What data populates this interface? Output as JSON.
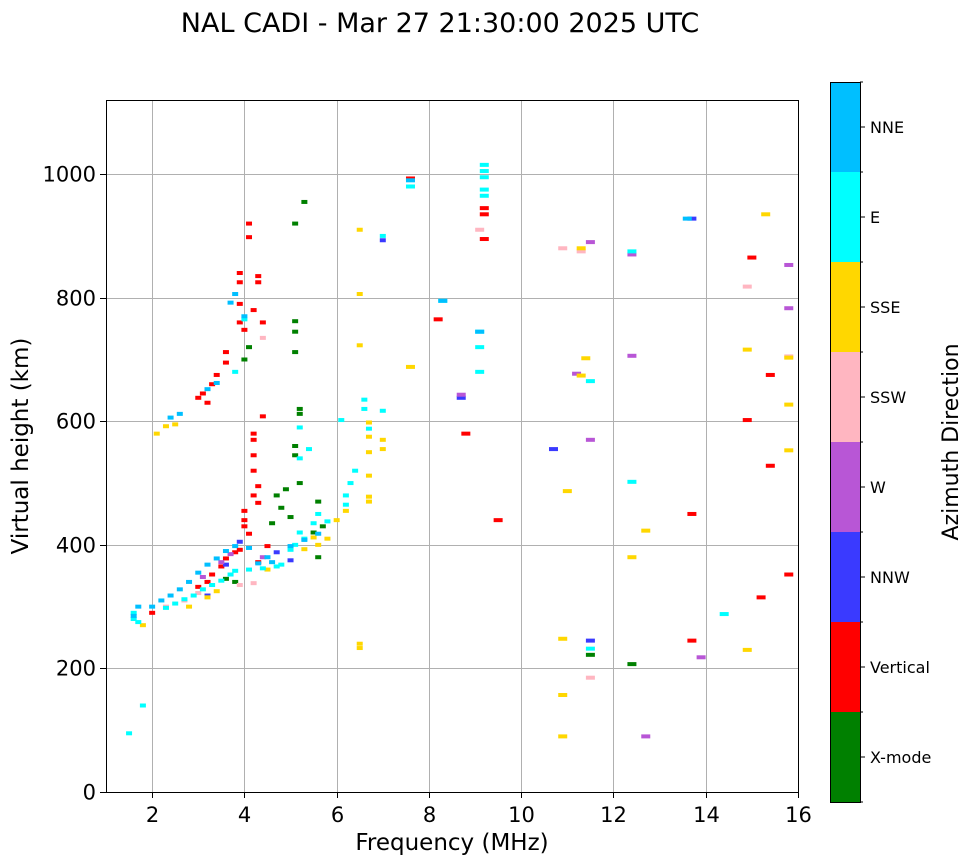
{
  "chart_data": {
    "type": "scatter",
    "title": "NAL CADI - Mar 27 21:30:00 2025 UTC",
    "xlabel": "Frequency (MHz)",
    "ylabel": "Virtual height (km)",
    "xlim": [
      1,
      16
    ],
    "ylim": [
      0,
      1120
    ],
    "xticks": [
      2,
      4,
      6,
      8,
      10,
      12,
      14,
      16
    ],
    "yticks": [
      0,
      200,
      400,
      600,
      800,
      1000
    ],
    "grid": true,
    "colorbar": {
      "label": "Azimuth Direction",
      "categories": [
        {
          "name": "X-mode",
          "color": "#008000"
        },
        {
          "name": "Vertical",
          "color": "#ff0000"
        },
        {
          "name": "NNW",
          "color": "#3a3aff"
        },
        {
          "name": "W",
          "color": "#b856d6"
        },
        {
          "name": "SSW",
          "color": "#ffb6c1"
        },
        {
          "name": "SSE",
          "color": "#ffd700"
        },
        {
          "name": "E",
          "color": "#00ffff"
        },
        {
          "name": "NNE",
          "color": "#00bfff"
        }
      ]
    },
    "series": [
      {
        "name": "X-mode",
        "points": [
          [
            5.1,
            762
          ],
          [
            5.1,
            745
          ],
          [
            5.1,
            712
          ],
          [
            5.2,
            620
          ],
          [
            5.2,
            612
          ],
          [
            5.1,
            560
          ],
          [
            5.1,
            545
          ],
          [
            5.0,
            445
          ],
          [
            4.9,
            490
          ],
          [
            5.2,
            500
          ],
          [
            5.3,
            955
          ],
          [
            5.1,
            920
          ],
          [
            4.0,
            700
          ],
          [
            4.1,
            720
          ],
          [
            5.6,
            470
          ],
          [
            5.5,
            420
          ],
          [
            5.7,
            430
          ],
          [
            5.6,
            380
          ],
          [
            4.8,
            460
          ],
          [
            3.6,
            345
          ],
          [
            3.8,
            340
          ],
          [
            11.5,
            222
          ],
          [
            12.4,
            207
          ],
          [
            4.6,
            435
          ],
          [
            4.7,
            480
          ]
        ]
      },
      {
        "name": "Vertical",
        "points": [
          [
            4.1,
            920
          ],
          [
            4.1,
            898
          ],
          [
            3.9,
            840
          ],
          [
            3.9,
            825
          ],
          [
            4.3,
            835
          ],
          [
            4.3,
            825
          ],
          [
            3.9,
            790
          ],
          [
            3.9,
            760
          ],
          [
            4.0,
            748
          ],
          [
            3.6,
            712
          ],
          [
            3.6,
            695
          ],
          [
            3.4,
            675
          ],
          [
            3.3,
            660
          ],
          [
            3.1,
            645
          ],
          [
            3.0,
            638
          ],
          [
            3.2,
            630
          ],
          [
            4.2,
            580
          ],
          [
            4.2,
            570
          ],
          [
            4.2,
            545
          ],
          [
            4.2,
            520
          ],
          [
            4.3,
            495
          ],
          [
            4.2,
            480
          ],
          [
            4.3,
            468
          ],
          [
            4.0,
            455
          ],
          [
            4.0,
            440
          ],
          [
            4.0,
            430
          ],
          [
            4.1,
            418
          ],
          [
            4.5,
            398
          ],
          [
            3.9,
            392
          ],
          [
            3.8,
            388
          ],
          [
            3.6,
            378
          ],
          [
            4.3,
            372
          ],
          [
            3.5,
            365
          ],
          [
            3.3,
            352
          ],
          [
            3.2,
            340
          ],
          [
            3.0,
            332
          ],
          [
            7.6,
            993
          ],
          [
            9.2,
            945
          ],
          [
            9.2,
            935
          ],
          [
            9.2,
            895
          ],
          [
            8.2,
            765
          ],
          [
            8.8,
            580
          ],
          [
            9.5,
            440
          ],
          [
            15.0,
            865
          ],
          [
            15.4,
            675
          ],
          [
            14.9,
            602
          ],
          [
            15.4,
            528
          ],
          [
            13.7,
            450
          ],
          [
            15.2,
            315
          ],
          [
            13.7,
            245
          ],
          [
            15.8,
            352
          ],
          [
            4.4,
            608
          ],
          [
            2.0,
            290
          ],
          [
            4.2,
            780
          ],
          [
            4.4,
            760
          ]
        ]
      },
      {
        "name": "NNW",
        "points": [
          [
            7.0,
            893
          ],
          [
            8.7,
            638
          ],
          [
            10.7,
            555
          ],
          [
            13.7,
            928
          ],
          [
            11.5,
            245
          ],
          [
            3.6,
            368
          ],
          [
            3.9,
            405
          ],
          [
            3.2,
            318
          ],
          [
            4.7,
            388
          ],
          [
            5.0,
            375
          ]
        ]
      },
      {
        "name": "W",
        "points": [
          [
            11.5,
            890
          ],
          [
            12.4,
            870
          ],
          [
            8.7,
            643
          ],
          [
            12.4,
            706
          ],
          [
            11.5,
            570
          ],
          [
            11.2,
            677
          ],
          [
            13.9,
            218
          ],
          [
            12.7,
            90
          ],
          [
            15.8,
            853
          ],
          [
            15.8,
            783
          ],
          [
            3.7,
            385
          ],
          [
            3.5,
            372
          ],
          [
            4.4,
            380
          ],
          [
            3.1,
            348
          ]
        ]
      },
      {
        "name": "SSW",
        "points": [
          [
            10.9,
            880
          ],
          [
            11.3,
            875
          ],
          [
            9.1,
            910
          ],
          [
            14.9,
            818
          ],
          [
            15.8,
            705
          ],
          [
            11.5,
            185
          ],
          [
            3.9,
            335
          ],
          [
            4.2,
            338
          ],
          [
            2.3,
            300
          ],
          [
            2.7,
            310
          ],
          [
            3.0,
            322
          ],
          [
            4.4,
            735
          ]
        ]
      },
      {
        "name": "SSE",
        "points": [
          [
            6.5,
            910
          ],
          [
            6.5,
            806
          ],
          [
            6.5,
            723
          ],
          [
            7.6,
            688
          ],
          [
            6.7,
            598
          ],
          [
            6.7,
            575
          ],
          [
            6.7,
            550
          ],
          [
            6.7,
            512
          ],
          [
            6.7,
            478
          ],
          [
            6.7,
            470
          ],
          [
            6.2,
            455
          ],
          [
            6.0,
            440
          ],
          [
            5.8,
            410
          ],
          [
            5.6,
            400
          ],
          [
            5.3,
            393
          ],
          [
            11.3,
            880
          ],
          [
            11.4,
            702
          ],
          [
            11.0,
            487
          ],
          [
            12.4,
            380
          ],
          [
            12.7,
            423
          ],
          [
            10.9,
            248
          ],
          [
            10.9,
            157
          ],
          [
            10.9,
            90
          ],
          [
            15.3,
            935
          ],
          [
            14.9,
            716
          ],
          [
            15.8,
            627
          ],
          [
            15.8,
            553
          ],
          [
            14.9,
            230
          ],
          [
            15.8,
            703
          ],
          [
            6.5,
            240
          ],
          [
            6.5,
            233
          ],
          [
            7.0,
            570
          ],
          [
            7.0,
            555
          ],
          [
            2.1,
            580
          ],
          [
            2.3,
            592
          ],
          [
            2.5,
            595
          ],
          [
            1.8,
            270
          ],
          [
            2.8,
            300
          ],
          [
            3.2,
            315
          ],
          [
            3.4,
            325
          ],
          [
            4.5,
            360
          ],
          [
            5.5,
            412
          ],
          [
            11.3,
            674
          ]
        ]
      },
      {
        "name": "E",
        "points": [
          [
            9.2,
            1015
          ],
          [
            9.2,
            1005
          ],
          [
            9.2,
            995
          ],
          [
            9.2,
            975
          ],
          [
            9.2,
            965
          ],
          [
            7.0,
            900
          ],
          [
            7.6,
            980
          ],
          [
            8.3,
            795
          ],
          [
            9.1,
            745
          ],
          [
            9.1,
            720
          ],
          [
            9.1,
            680
          ],
          [
            6.6,
            620
          ],
          [
            6.6,
            635
          ],
          [
            6.4,
            520
          ],
          [
            6.3,
            500
          ],
          [
            6.2,
            480
          ],
          [
            6.2,
            465
          ],
          [
            5.6,
            450
          ],
          [
            5.8,
            438
          ],
          [
            5.5,
            435
          ],
          [
            5.2,
            420
          ],
          [
            5.3,
            410
          ],
          [
            5.1,
            400
          ],
          [
            5.0,
            392
          ],
          [
            4.8,
            368
          ],
          [
            4.7,
            365
          ],
          [
            4.4,
            362
          ],
          [
            4.1,
            360
          ],
          [
            3.8,
            358
          ],
          [
            3.7,
            352
          ],
          [
            3.5,
            342
          ],
          [
            3.3,
            335
          ],
          [
            3.1,
            328
          ],
          [
            2.9,
            318
          ],
          [
            2.7,
            312
          ],
          [
            2.5,
            305
          ],
          [
            2.3,
            298
          ],
          [
            1.6,
            290
          ],
          [
            1.6,
            280
          ],
          [
            1.7,
            275
          ],
          [
            1.5,
            95
          ],
          [
            1.8,
            140
          ],
          [
            12.4,
            875
          ],
          [
            12.4,
            502
          ],
          [
            11.5,
            665
          ],
          [
            11.5,
            232
          ],
          [
            14.4,
            288
          ],
          [
            6.1,
            602
          ],
          [
            5.2,
            590
          ],
          [
            5.4,
            555
          ],
          [
            7.0,
            617
          ],
          [
            3.8,
            680
          ],
          [
            4.0,
            765
          ],
          [
            5.2,
            540
          ],
          [
            6.7,
            588
          ]
        ]
      },
      {
        "name": "NNE",
        "points": [
          [
            3.8,
            806
          ],
          [
            3.7,
            792
          ],
          [
            4.0,
            770
          ],
          [
            3.4,
            662
          ],
          [
            3.2,
            652
          ],
          [
            2.6,
            612
          ],
          [
            2.4,
            606
          ],
          [
            4.1,
            395
          ],
          [
            3.8,
            398
          ],
          [
            3.6,
            390
          ],
          [
            3.4,
            378
          ],
          [
            3.2,
            368
          ],
          [
            3.0,
            355
          ],
          [
            2.8,
            340
          ],
          [
            2.6,
            328
          ],
          [
            2.4,
            318
          ],
          [
            2.2,
            310
          ],
          [
            2.0,
            300
          ],
          [
            1.7,
            300
          ],
          [
            1.6,
            285
          ],
          [
            7.6,
            990
          ],
          [
            8.3,
            795
          ],
          [
            9.1,
            745
          ],
          [
            13.6,
            928
          ],
          [
            5.3,
            408
          ],
          [
            5.6,
            418
          ],
          [
            5.0,
            398
          ],
          [
            4.5,
            380
          ],
          [
            4.3,
            370
          ],
          [
            4.6,
            372
          ]
        ]
      }
    ]
  }
}
